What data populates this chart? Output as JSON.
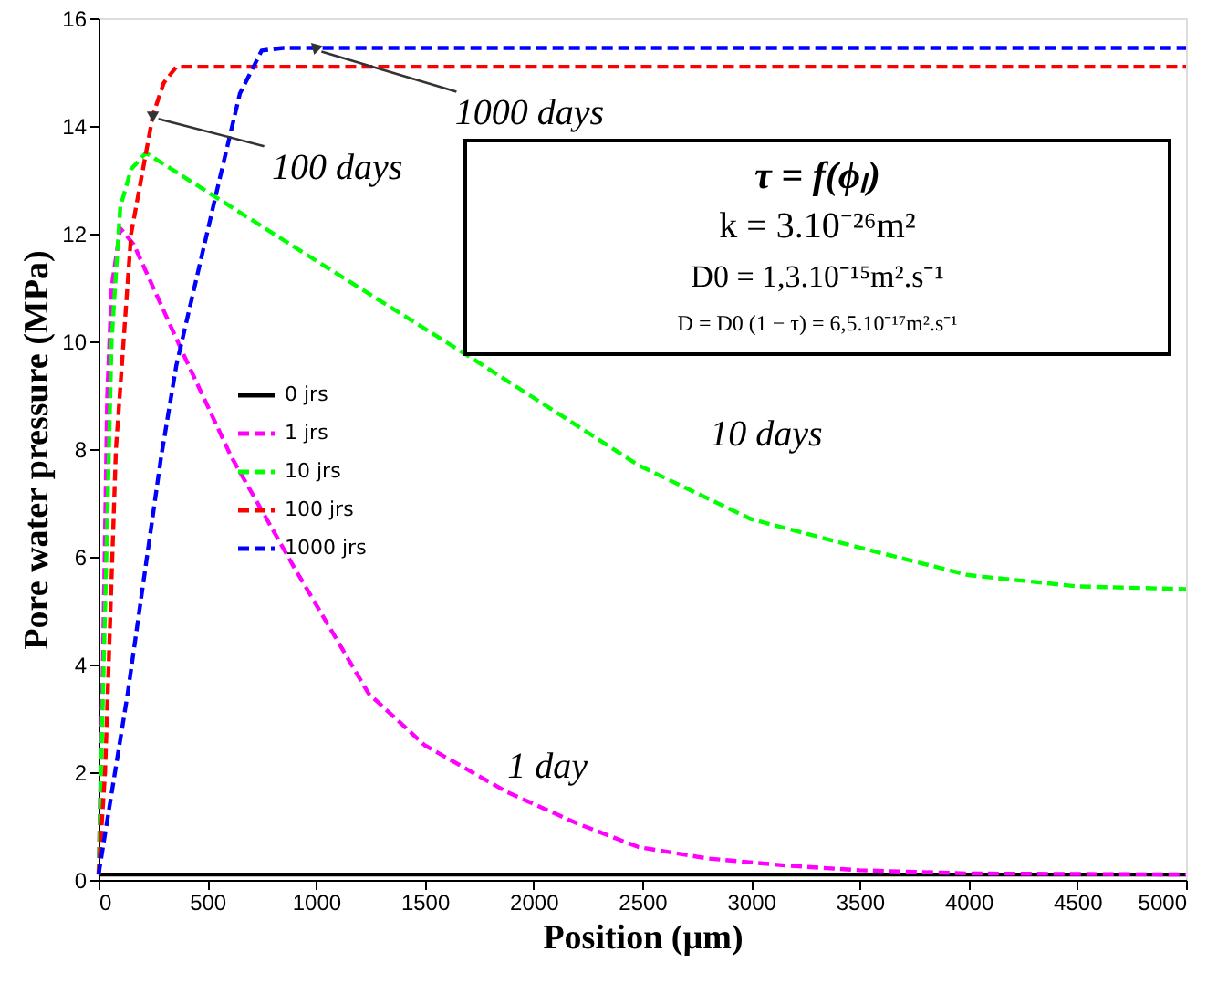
{
  "chart_data": {
    "type": "line",
    "xlabel": "Position (µm)",
    "ylabel": "Pore water pressure (MPa)",
    "xlim": [
      0,
      5000
    ],
    "xticks": [
      0,
      500,
      1000,
      1500,
      2000,
      2500,
      3000,
      3500,
      4000,
      4500,
      5000
    ],
    "ylim": [
      0,
      16
    ],
    "yticks": [
      0,
      2,
      4,
      6,
      8,
      10,
      12,
      14,
      16
    ],
    "grid": false,
    "legend": "left",
    "marker": "none",
    "series": [
      {
        "name": "0 jrs",
        "color": "#000000",
        "line_style": "solid",
        "x": [
          0,
          5000
        ],
        "values": [
          0.1,
          0.1
        ]
      },
      {
        "name": "1 jrs",
        "color": "#ff00ff",
        "line_style": "dashed",
        "x": [
          0,
          20,
          40,
          60,
          100,
          162,
          386,
          610,
          900,
          1242,
          1500,
          1879,
          2200,
          2483,
          2800,
          3154,
          3500,
          4000,
          5000
        ],
        "values": [
          0.1,
          4,
          9,
          11,
          12.1,
          11.8,
          9.8,
          7.86,
          5.8,
          3.46,
          2.5,
          1.63,
          1.05,
          0.61,
          0.4,
          0.27,
          0.18,
          0.12,
          0.1
        ]
      },
      {
        "name": "10 jrs",
        "color": "#00ff00",
        "line_style": "dashed",
        "x": [
          0,
          30,
          60,
          100,
          150,
          218,
          1000,
          1728,
          2483,
          3000,
          3500,
          4000,
          4500,
          5000
        ],
        "values": [
          0.1,
          5,
          10,
          12.5,
          13.2,
          13.5,
          11.5,
          9.66,
          7.7,
          6.7,
          6.17,
          5.66,
          5.45,
          5.4
        ]
      },
      {
        "name": "100 jrs",
        "color": "#ff0000",
        "line_style": "dashed",
        "x": [
          0,
          30,
          80,
          150,
          250,
          300,
          358,
          450,
          5000
        ],
        "values": [
          0.1,
          2,
          8,
          12,
          14.2,
          14.8,
          15.1,
          15.1,
          15.1
        ]
      },
      {
        "name": "1000 jrs",
        "color": "#0000ff",
        "line_style": "dashed",
        "x": [
          0,
          134,
          288,
          358,
          553,
          650,
          750,
          850,
          5000
        ],
        "values": [
          0.1,
          3.46,
          7.86,
          9.56,
          12.95,
          14.6,
          15.4,
          15.45,
          15.45
        ]
      }
    ],
    "annotations": [
      {
        "text": "1000 days",
        "x": 1000,
        "y": 15.45
      },
      {
        "text": "100 days",
        "x": 250,
        "y": 14.2
      },
      "10 days",
      "1 day",
      "τ = f(ϕₗ)",
      "k = 3.10⁻²⁶m²",
      "D0 = 1,3.10⁻¹⁵m².s⁻¹",
      "D = D0 (1 − τ) = 6,5.10⁻¹⁷m².s⁻¹"
    ]
  }
}
